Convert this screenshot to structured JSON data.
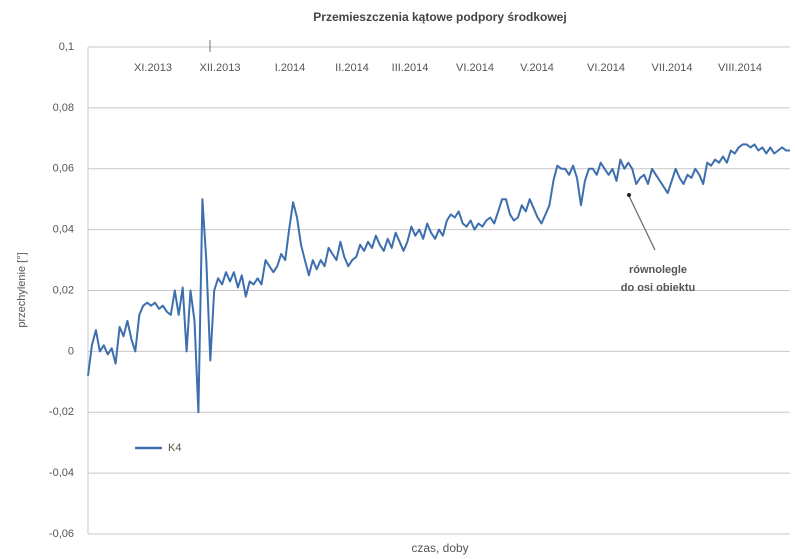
{
  "chart_data": {
    "type": "line",
    "title": "Przemieszczenia kątowe podpory środkowej",
    "ylabel": "przechylenie [°]",
    "xlabel": "czas, doby",
    "months": [
      "XI.2013",
      "XII.2013",
      "I.2014",
      "II.2014",
      "III.2014",
      "VI.2014",
      "V.2014",
      "VI.2014",
      "VII.2014",
      "VIII.2014"
    ],
    "annotation": [
      "równolegle",
      "do osi obiektu"
    ],
    "ylim": [
      -0.06,
      0.1
    ],
    "yticks": [
      {
        "value": -0.06,
        "label": "-0,06"
      },
      {
        "value": -0.04,
        "label": "-0,04"
      },
      {
        "value": -0.02,
        "label": "-0,02"
      },
      0,
      {
        "value": 0.02,
        "label": "0,02"
      },
      {
        "value": 0.04,
        "label": "0,04"
      },
      {
        "value": 0.06,
        "label": "0,06"
      },
      {
        "value": 0.08,
        "label": "0,08"
      },
      {
        "value": 0.1,
        "label": "0,1"
      }
    ],
    "grid": true,
    "legend": "lower left",
    "series": [
      {
        "name": "K4",
        "color": "#3d6fae",
        "values": [
          -0.008,
          0.002,
          0.007,
          0.0,
          0.002,
          -0.001,
          0.001,
          -0.004,
          0.008,
          0.005,
          0.01,
          0.004,
          0.0,
          0.012,
          0.015,
          0.016,
          0.015,
          0.016,
          0.014,
          0.015,
          0.013,
          0.012,
          0.02,
          0.012,
          0.021,
          0.0,
          0.02,
          0.01,
          -0.02,
          0.05,
          0.03,
          -0.003,
          0.02,
          0.024,
          0.022,
          0.026,
          0.023,
          0.026,
          0.021,
          0.025,
          0.018,
          0.023,
          0.022,
          0.024,
          0.022,
          0.03,
          0.028,
          0.026,
          0.028,
          0.032,
          0.03,
          0.04,
          0.049,
          0.044,
          0.035,
          0.03,
          0.025,
          0.03,
          0.027,
          0.03,
          0.028,
          0.034,
          0.032,
          0.03,
          0.036,
          0.031,
          0.028,
          0.03,
          0.031,
          0.035,
          0.033,
          0.036,
          0.034,
          0.038,
          0.035,
          0.033,
          0.037,
          0.034,
          0.039,
          0.036,
          0.033,
          0.036,
          0.041,
          0.038,
          0.04,
          0.037,
          0.042,
          0.039,
          0.037,
          0.04,
          0.038,
          0.043,
          0.045,
          0.044,
          0.046,
          0.042,
          0.041,
          0.043,
          0.04,
          0.042,
          0.041,
          0.043,
          0.044,
          0.042,
          0.046,
          0.05,
          0.05,
          0.045,
          0.043,
          0.044,
          0.048,
          0.046,
          0.05,
          0.047,
          0.044,
          0.042,
          0.045,
          0.048,
          0.056,
          0.061,
          0.06,
          0.06,
          0.058,
          0.061,
          0.057,
          0.048,
          0.056,
          0.06,
          0.06,
          0.058,
          0.062,
          0.06,
          0.058,
          0.06,
          0.056,
          0.063,
          0.06,
          0.062,
          0.06,
          0.055,
          0.057,
          0.058,
          0.055,
          0.06,
          0.058,
          0.056,
          0.054,
          0.052,
          0.056,
          0.06,
          0.057,
          0.055,
          0.058,
          0.057,
          0.06,
          0.058,
          0.055,
          0.062,
          0.061,
          0.063,
          0.062,
          0.064,
          0.062,
          0.066,
          0.065,
          0.067,
          0.068,
          0.068,
          0.067,
          0.068,
          0.066,
          0.067,
          0.065,
          0.067,
          0.065,
          0.066,
          0.067,
          0.066,
          0.066
        ]
      }
    ]
  }
}
